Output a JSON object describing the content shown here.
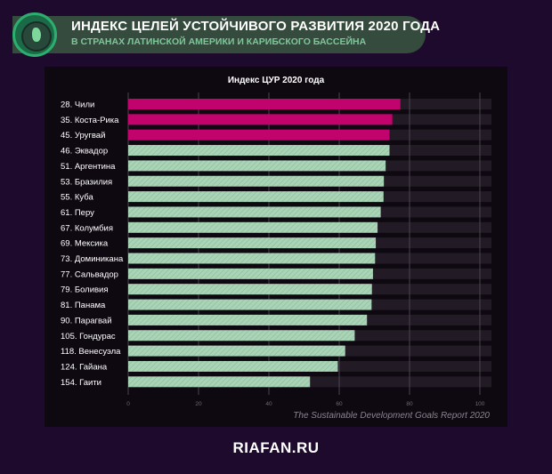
{
  "header": {
    "title": "ИНДЕКС ЦЕЛЕЙ УСТОЙЧИВОГО РАЗВИТИЯ 2020 ГОДА",
    "subtitle": "В СТРАНАХ ЛАТИНСКОЙ АМЕРИКИ И КАРИБСКОГО БАССЕЙНА",
    "logo_icon": "globe-south-america-icon"
  },
  "chart_data": {
    "type": "bar",
    "orientation": "horizontal",
    "title": "Индекс ЦУР 2020 года",
    "categories": [
      "28. Чили",
      "35. Коста-Рика",
      "45. Уругвай",
      "46. Эквадор",
      "51. Аргентина",
      "53. Бразилия",
      "55. Куба",
      "61. Перу",
      "67. Колумбия",
      "69. Мексика",
      "73. Доминикана",
      "77. Сальвадор",
      "79. Боливия",
      "81. Панама",
      "90. Парагвай",
      "105. Гондурас",
      "118. Венесуэла",
      "124. Гайана",
      "154. Гаити"
    ],
    "values": [
      77.4,
      75.1,
      74.3,
      74.3,
      73.2,
      72.7,
      72.6,
      71.8,
      70.9,
      70.4,
      70.2,
      69.6,
      69.3,
      69.2,
      67.9,
      64.4,
      61.7,
      59.6,
      51.7
    ],
    "highlighted_count": 3,
    "xlim": [
      0,
      100
    ],
    "xticks": [
      "0",
      "20",
      "40",
      "60",
      "80",
      "100"
    ],
    "grid": true,
    "colors": {
      "highlight": "#c2036e",
      "normal": "#a9d4b6",
      "track": "#221b26"
    }
  },
  "source": "The Sustainable Development Goals Report 2020",
  "footer": "RIAFAN.RU"
}
